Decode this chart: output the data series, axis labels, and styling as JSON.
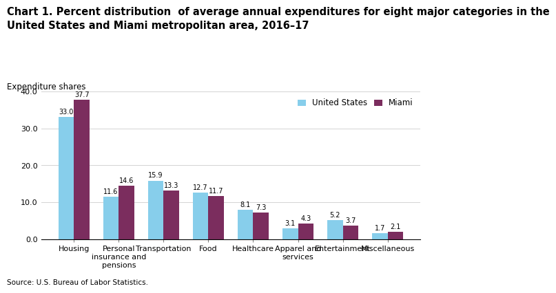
{
  "title": "Chart 1. Percent distribution  of average annual expenditures for eight major categories in the\nUnited States and Miami metropolitan area, 2016–17",
  "ylabel": "Expenditure shares",
  "source": "Source: U.S. Bureau of Labor Statistics.",
  "categories": [
    "Housing",
    "Personal\ninsurance and\npensions",
    "Transportation",
    "Food",
    "Healthcare",
    "Apparel and\nservices",
    "Entertainment",
    "Miscellaneous"
  ],
  "us_values": [
    33.0,
    11.6,
    15.9,
    12.7,
    8.1,
    3.1,
    5.2,
    1.7
  ],
  "miami_values": [
    37.7,
    14.6,
    13.3,
    11.7,
    7.3,
    4.3,
    3.7,
    2.1
  ],
  "us_color": "#87CEEB",
  "miami_color": "#7B2D5E",
  "ylim": [
    0,
    40.0
  ],
  "yticks": [
    0.0,
    10.0,
    20.0,
    30.0,
    40.0
  ],
  "legend_us": "United States",
  "legend_miami": "Miami",
  "bar_width": 0.35,
  "title_fontsize": 10.5,
  "axis_label_fontsize": 8.5,
  "tick_fontsize": 8,
  "value_fontsize": 7,
  "legend_fontsize": 8.5,
  "source_fontsize": 7.5
}
